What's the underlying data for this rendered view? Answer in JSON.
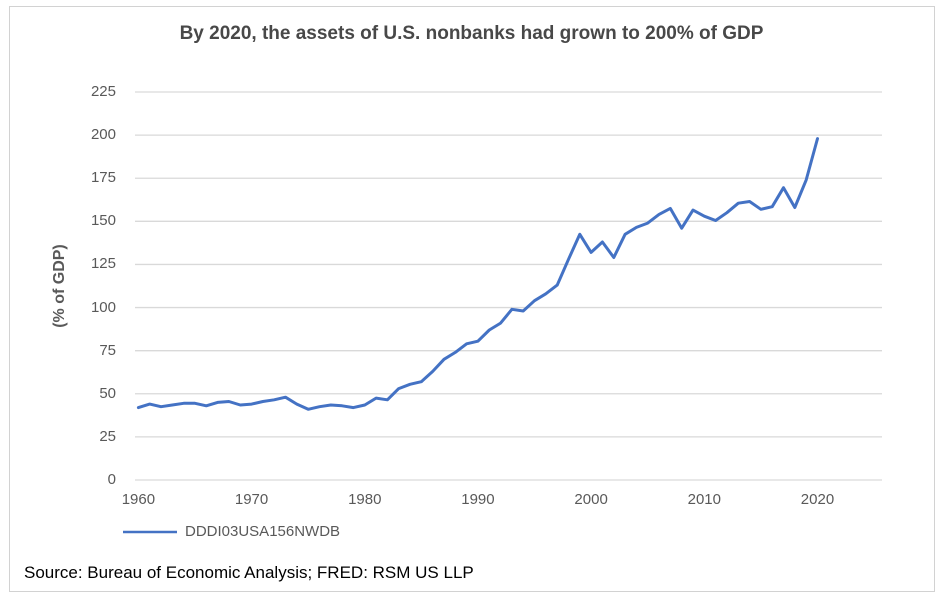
{
  "chart_data": {
    "type": "line",
    "title": "By 2020, the assets of U.S. nonbanks had grown to 200% of GDP",
    "ylabel": "(% of GDP)",
    "xlabel": "",
    "grid": true,
    "legend_position": "bottom-left",
    "ylim": [
      0,
      225
    ],
    "xlim": [
      1959.7,
      2025.7
    ],
    "yticks": [
      0,
      25,
      50,
      75,
      100,
      125,
      150,
      175,
      200,
      225
    ],
    "xticks": [
      1960,
      1970,
      1980,
      1990,
      2000,
      2010,
      2020
    ],
    "x": [
      1960,
      1961,
      1962,
      1963,
      1964,
      1965,
      1966,
      1967,
      1968,
      1969,
      1970,
      1971,
      1972,
      1973,
      1974,
      1975,
      1976,
      1977,
      1978,
      1979,
      1980,
      1981,
      1982,
      1983,
      1984,
      1985,
      1986,
      1987,
      1988,
      1989,
      1990,
      1991,
      1992,
      1993,
      1994,
      1995,
      1996,
      1997,
      1998,
      1999,
      2000,
      2001,
      2002,
      2003,
      2004,
      2005,
      2006,
      2007,
      2008,
      2009,
      2010,
      2011,
      2012,
      2013,
      2014,
      2015,
      2016,
      2017,
      2018,
      2019,
      2020
    ],
    "series": [
      {
        "name": "DDDI03USA156NWDB",
        "color": "#4472C4",
        "values": [
          42,
          44,
          42.5,
          43.5,
          44.5,
          44.5,
          43,
          45,
          45.5,
          43.5,
          44,
          45.5,
          46.5,
          48,
          44,
          41,
          42.5,
          43.5,
          43,
          42,
          43.5,
          47.5,
          46.5,
          53,
          55.5,
          57,
          63,
          70,
          74,
          79,
          80.5,
          87,
          91,
          99,
          98,
          104,
          108,
          113,
          128,
          142.5,
          132,
          138,
          129,
          142.5,
          146.5,
          149,
          154,
          157.5,
          146,
          156.5,
          153,
          150.5,
          155,
          160.5,
          161.5,
          157,
          158.5,
          169.5,
          158,
          174,
          198
        ]
      }
    ],
    "source": "Source: Bureau of Economic Analysis; FRED: RSM US LLP"
  },
  "colors": {
    "line": "#4472C4",
    "gridline": "#D9D9D9",
    "tick_text": "#595959",
    "title_text": "#484848",
    "source_text": "#000000",
    "border": "#D2D2D2"
  }
}
